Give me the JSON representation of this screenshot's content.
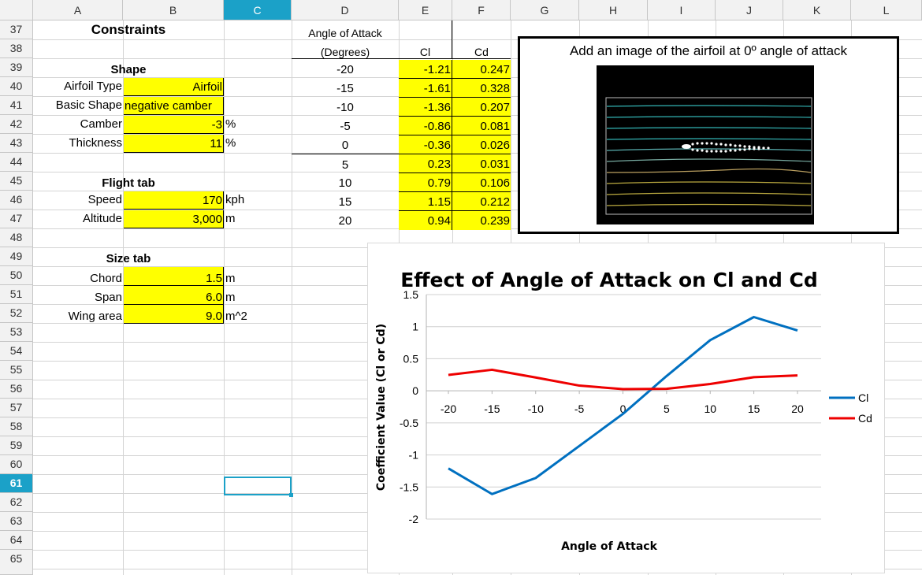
{
  "columns": [
    "A",
    "B",
    "C",
    "D",
    "E",
    "F",
    "G",
    "H",
    "I",
    "J",
    "K",
    "L"
  ],
  "selected_column": "C",
  "rows": [
    "37",
    "38",
    "39",
    "40",
    "41",
    "42",
    "43",
    "44",
    "45",
    "46",
    "47",
    "48",
    "49",
    "50",
    "51",
    "52",
    "53",
    "54",
    "55",
    "56",
    "57",
    "58",
    "59",
    "60",
    "61",
    "62",
    "63",
    "64",
    "65"
  ],
  "selected_row": "61",
  "constraints": {
    "title": "Constraints",
    "shape_heading": "Shape",
    "airfoil_type_label": "Airfoil Type",
    "airfoil_type_value": "Airfoil",
    "basic_shape_label": "Basic Shape",
    "basic_shape_value": "negative camber",
    "camber_label": "Camber",
    "camber_value": "-3",
    "camber_unit": "%",
    "thickness_label": "Thickness",
    "thickness_value": "11",
    "thickness_unit": "%",
    "flight_heading": "Flight tab",
    "speed_label": "Speed",
    "speed_value": "170",
    "speed_unit": "kph",
    "altitude_label": "Altitude",
    "altitude_value": "3,000",
    "altitude_unit": "m",
    "size_heading": "Size tab",
    "chord_label": "Chord",
    "chord_value": "1.5",
    "chord_unit": "m",
    "span_label": "Span",
    "span_value": "6.0",
    "span_unit": "m",
    "wing_area_label": "Wing area",
    "wing_area_value": "9.0",
    "wing_area_unit": "m^2"
  },
  "table": {
    "header_line1": "Angle of Attack",
    "header_line2": "(Degrees)",
    "cl_header": "Cl",
    "cd_header": "Cd",
    "rows": [
      {
        "angle": "-20",
        "cl": "-1.21",
        "cd": "0.247"
      },
      {
        "angle": "-15",
        "cl": "-1.61",
        "cd": "0.328"
      },
      {
        "angle": "-10",
        "cl": "-1.36",
        "cd": "0.207"
      },
      {
        "angle": "-5",
        "cl": "-0.86",
        "cd": "0.081"
      },
      {
        "angle": "0",
        "cl": "-0.36",
        "cd": "0.026"
      },
      {
        "angle": "5",
        "cl": "0.23",
        "cd": "0.031"
      },
      {
        "angle": "10",
        "cl": "0.79",
        "cd": "0.106"
      },
      {
        "angle": "15",
        "cl": "1.15",
        "cd": "0.212"
      },
      {
        "angle": "20",
        "cl": "0.94",
        "cd": "0.239"
      }
    ]
  },
  "image_box": {
    "title": "Add an image of the airfoil at 0º angle of attack"
  },
  "chart_data": {
    "type": "line",
    "title": "Effect of Angle of Attack on Cl and Cd",
    "xlabel": "Angle of Attack",
    "ylabel": "Coefficient Value (Cl or Cd)",
    "categories": [
      "-20",
      "-15",
      "-10",
      "-5",
      "0",
      "5",
      "10",
      "15",
      "20"
    ],
    "x": [
      -20,
      -15,
      -10,
      -5,
      0,
      5,
      10,
      15,
      20
    ],
    "series": [
      {
        "name": "Cl",
        "color": "#0070c0",
        "values": [
          -1.21,
          -1.61,
          -1.36,
          -0.86,
          -0.36,
          0.23,
          0.79,
          1.15,
          0.94
        ]
      },
      {
        "name": "Cd",
        "color": "#ee0000",
        "values": [
          0.247,
          0.328,
          0.207,
          0.081,
          0.026,
          0.031,
          0.106,
          0.212,
          0.239
        ]
      }
    ],
    "ylim": [
      -2,
      1.5
    ],
    "yticks": [
      "1.5",
      "1",
      "0.5",
      "0",
      "-0.5",
      "-1",
      "-1.5",
      "-2"
    ],
    "grid": true,
    "legend": "right"
  }
}
